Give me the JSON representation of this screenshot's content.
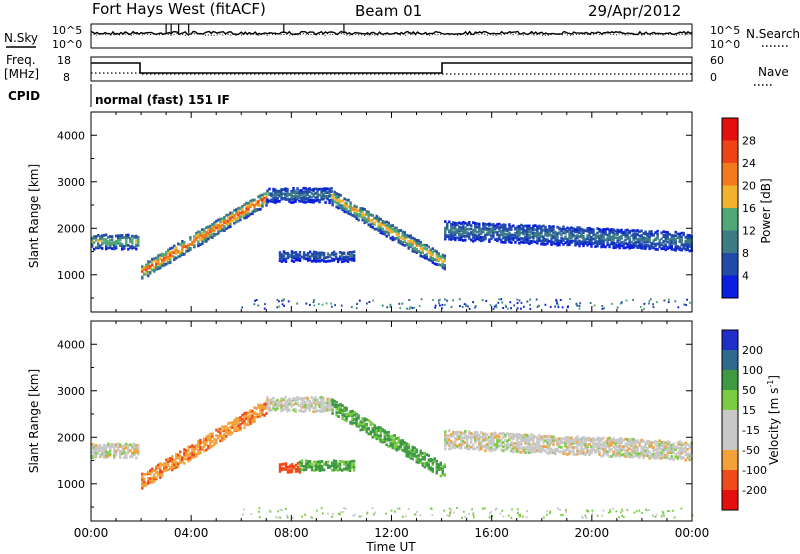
{
  "header": {
    "station": "Fort Hays West (fitACF)",
    "beam": "Beam 01",
    "date": "29/Apr/2012"
  },
  "left_labels": {
    "nsky": "N.Sky",
    "freq": "Freq.",
    "freq_unit": "[MHz]",
    "cpid": "CPID"
  },
  "right_labels": {
    "nsearch": "N.Search",
    "nave": "Nave"
  },
  "cpid_text": "normal (fast) 151 IF",
  "noise_panel": {
    "left_ticks": [
      "10^5",
      "10^0"
    ],
    "right_ticks": [
      "10^5",
      "10^0"
    ]
  },
  "freq_panel": {
    "left_ticks": [
      "18",
      "8"
    ],
    "right_ticks": [
      "60",
      "0"
    ]
  },
  "time_axis": {
    "label": "Time UT",
    "ticks": [
      "00:00",
      "04:00",
      "08:00",
      "12:00",
      "16:00",
      "20:00",
      "00:00"
    ]
  },
  "colors": {
    "power_scale": [
      "#0a1de0",
      "#224ba8",
      "#3d7b86",
      "#4fa876",
      "#f2b22e",
      "#f27a1c",
      "#ef4418",
      "#e41010"
    ],
    "velocity_scale": [
      "#e41010",
      "#f04a1a",
      "#f3a23a",
      "#c8c8c8",
      "#c8c8c8",
      "#7acc40",
      "#3d9a42",
      "#2e6a8c",
      "#1f2ec8"
    ]
  },
  "chart_data": [
    {
      "type": "heatmap",
      "title": "",
      "xlabel": "Time UT",
      "ylabel": "Slant Range [km]",
      "xlim": [
        "00:00",
        "24:00"
      ],
      "ylim": [
        200,
        4500
      ],
      "x_ticks": [
        "00:00",
        "04:00",
        "08:00",
        "12:00",
        "16:00",
        "20:00",
        "00:00"
      ],
      "y_ticks": [
        1000,
        2000,
        3000,
        4000
      ],
      "colorbar": {
        "label": "Power [dB]",
        "range": [
          0,
          32
        ],
        "ticks": [
          4,
          8,
          12,
          16,
          20,
          24,
          28
        ]
      },
      "echo_bands": [
        {
          "t_start": 0.0,
          "t_end": 1.9,
          "center_km": 1750,
          "halfwidth_km": 150,
          "peak_db": 16
        },
        {
          "t_start": 2.0,
          "t_end": 7.0,
          "center_start_km": 1100,
          "center_end_km": 2700,
          "halfwidth_km": 150,
          "peak_db": 26
        },
        {
          "t_start": 7.0,
          "t_end": 9.6,
          "center_km": 2750,
          "halfwidth_km": 150,
          "peak_db": 10
        },
        {
          "t_start": 9.6,
          "t_end": 14.1,
          "center_start_km": 2700,
          "center_end_km": 1300,
          "halfwidth_km": 150,
          "peak_db": 20
        },
        {
          "t_start": 7.5,
          "t_end": 10.5,
          "center_km": 1450,
          "halfwidth_km": 120,
          "peak_db": 8
        },
        {
          "t_start": 14.1,
          "t_end": 24.0,
          "center_start_km": 2000,
          "center_end_km": 1750,
          "halfwidth_km": 200,
          "peak_db": 10
        }
      ]
    },
    {
      "type": "heatmap",
      "title": "",
      "xlabel": "Time UT",
      "ylabel": "Slant Range [km]",
      "xlim": [
        "00:00",
        "24:00"
      ],
      "ylim": [
        200,
        4500
      ],
      "x_ticks": [
        "00:00",
        "04:00",
        "08:00",
        "12:00",
        "16:00",
        "20:00",
        "00:00"
      ],
      "y_ticks": [
        1000,
        2000,
        3000,
        4000
      ],
      "colorbar": {
        "label": "Velocity [m s",
        "label_sup": "-1",
        "label_end": "]",
        "range": [
          -250,
          250
        ],
        "ticks": [
          200,
          100,
          50,
          15,
          -15,
          -50,
          -100,
          -200
        ]
      },
      "echo_bands": [
        {
          "t_start": 0.0,
          "t_end": 1.9,
          "center_km": 1750,
          "halfwidth_km": 150,
          "velocity": 0
        },
        {
          "t_start": 2.0,
          "t_end": 7.0,
          "center_start_km": 1100,
          "center_end_km": 2700,
          "halfwidth_km": 150,
          "velocity": -40
        },
        {
          "t_start": 7.0,
          "t_end": 9.6,
          "center_km": 2750,
          "halfwidth_km": 150,
          "velocity": 0
        },
        {
          "t_start": 9.6,
          "t_end": 14.1,
          "center_start_km": 2700,
          "center_end_km": 1300,
          "halfwidth_km": 150,
          "velocity": 40
        },
        {
          "t_start": 7.5,
          "t_end": 8.3,
          "center_km": 1400,
          "halfwidth_km": 120,
          "velocity": -70
        },
        {
          "t_start": 8.3,
          "t_end": 10.5,
          "center_km": 1450,
          "halfwidth_km": 120,
          "velocity": 40
        },
        {
          "t_start": 14.1,
          "t_end": 24.0,
          "center_start_km": 2000,
          "center_end_km": 1750,
          "halfwidth_km": 200,
          "velocity": 0
        }
      ]
    }
  ]
}
